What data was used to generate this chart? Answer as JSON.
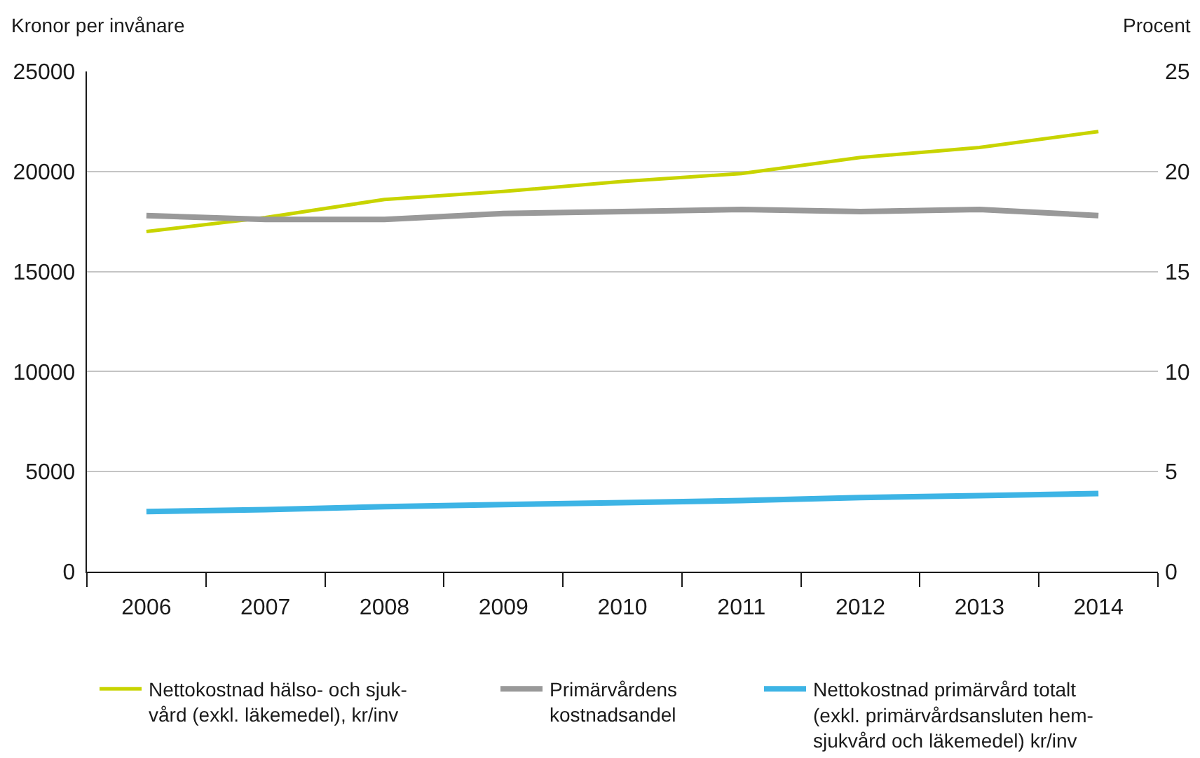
{
  "chart_data": {
    "type": "line",
    "ylabel": "Kronor per invånare",
    "y2label": "Procent",
    "categories": [
      "2006",
      "2007",
      "2008",
      "2009",
      "2010",
      "2011",
      "2012",
      "2013",
      "2014"
    ],
    "ylim": [
      0,
      25000
    ],
    "yticks": [
      0,
      5000,
      10000,
      15000,
      20000,
      25000
    ],
    "y2lim": [
      0,
      25
    ],
    "y2ticks": [
      0,
      5,
      10,
      15,
      20,
      25
    ],
    "grid": "y",
    "legend": "bottom",
    "series": [
      {
        "name": "Nettokostnad hälso- och sjuk-\nvård (exkl. läkemedel), kr/inv",
        "color": "#c8d400",
        "values": [
          17000,
          17700,
          18600,
          19000,
          19500,
          19900,
          20700,
          21200,
          22000
        ]
      },
      {
        "name": "Primärvårdens\nkostnadsandel",
        "color": "#999999",
        "axis": "y2",
        "values": [
          17.8,
          17.6,
          17.6,
          17.9,
          18.0,
          18.1,
          18.0,
          18.1,
          17.8
        ]
      },
      {
        "name": "Nettokostnad primärvård totalt\n(exkl. primärvårdsansluten hem-\nsjukvård och läkemedel) kr/inv",
        "color": "#3db4e5",
        "values": [
          3000,
          3100,
          3250,
          3350,
          3450,
          3550,
          3700,
          3800,
          3900
        ]
      }
    ]
  }
}
